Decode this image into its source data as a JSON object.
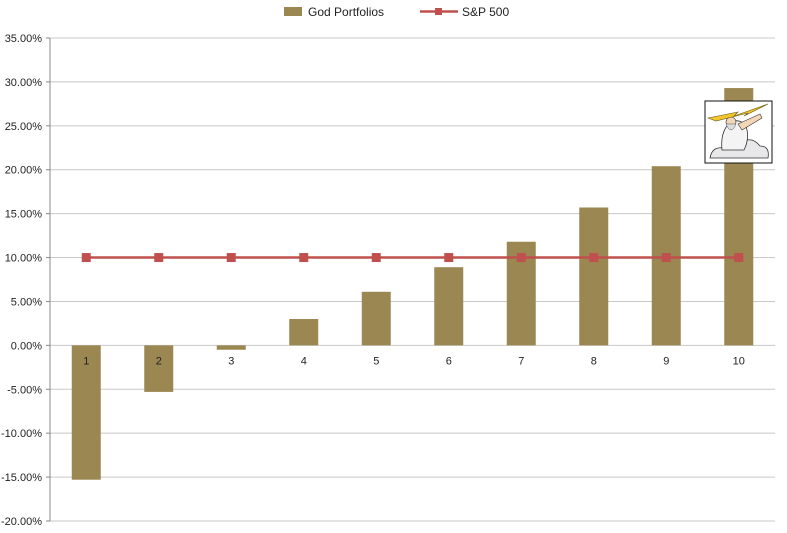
{
  "chart_data": {
    "type": "bar",
    "categories": [
      "1",
      "2",
      "3",
      "4",
      "5",
      "6",
      "7",
      "8",
      "9",
      "10"
    ],
    "series": [
      {
        "name": "God Portfolios",
        "type": "bar",
        "color": "#9B8752",
        "values": [
          -15.3,
          -5.3,
          -0.5,
          3.0,
          6.1,
          8.9,
          11.8,
          15.7,
          20.4,
          29.3
        ]
      },
      {
        "name": "S&P 500",
        "type": "line",
        "color": "#C0504D",
        "marker": "square",
        "values": [
          10,
          10,
          10,
          10,
          10,
          10,
          10,
          10,
          10,
          10
        ]
      }
    ],
    "y_tick_labels": [
      "35.00%",
      "30.00%",
      "25.00%",
      "20.00%",
      "15.00%",
      "10.00%",
      "5.00%",
      "0.00%",
      "-5.00%",
      "-10.00%",
      "-15.00%",
      "-20.00%"
    ],
    "ylim": [
      -20,
      35
    ],
    "grid": true,
    "legend": "top-center",
    "annotation_image": "zeus-thunderbolt-illustration"
  }
}
